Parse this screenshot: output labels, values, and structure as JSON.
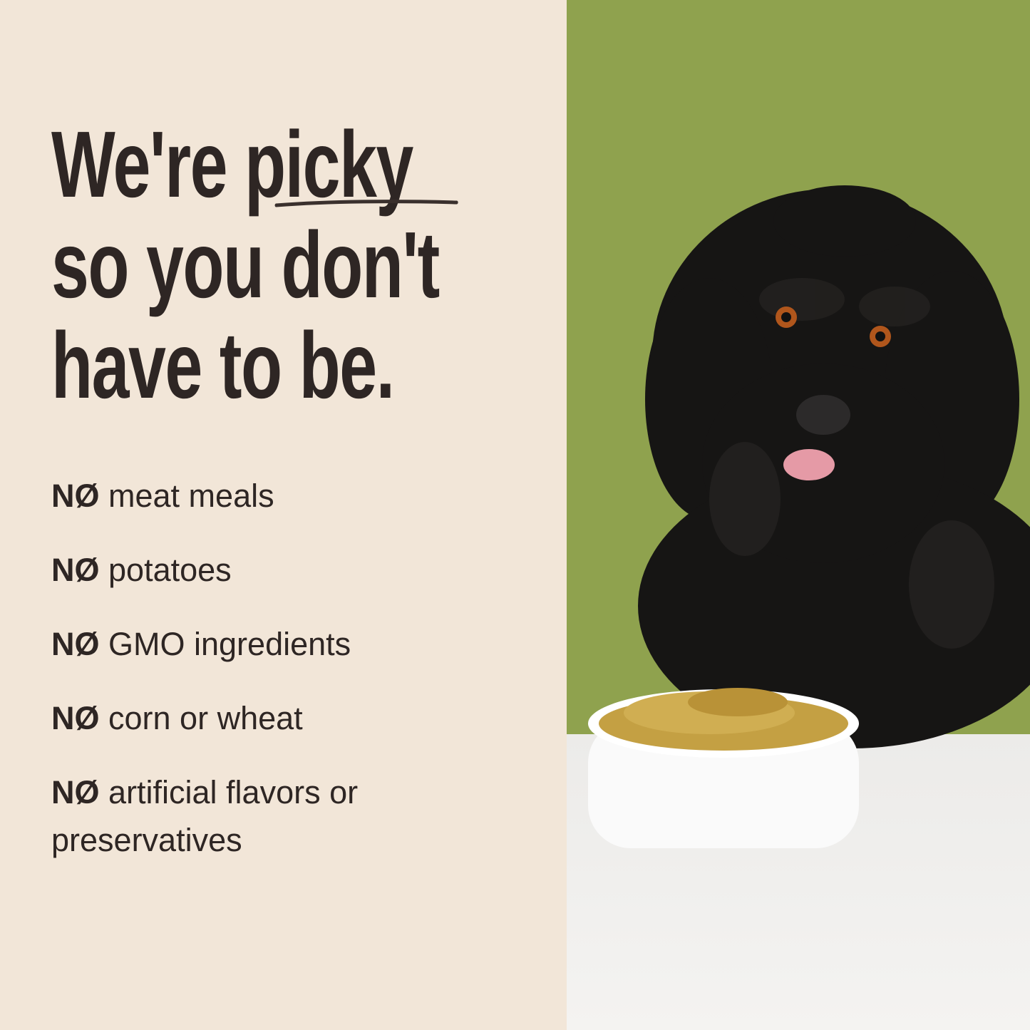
{
  "headline": {
    "line1_pre": "We're ",
    "line1_emph": "picky",
    "line2": "so you don't",
    "line3": "have to be."
  },
  "list": [
    {
      "prefix": "NØ",
      "text": "meat meals"
    },
    {
      "prefix": "NØ",
      "text": "potatoes"
    },
    {
      "prefix": "NØ",
      "text": "GMO ingredients"
    },
    {
      "prefix": "NØ",
      "text": "corn or wheat"
    },
    {
      "prefix": "NØ",
      "text": "artificial flavors or preservatives"
    }
  ],
  "colors": {
    "background": "#f2e6d8",
    "text": "#2e2624",
    "photo_backdrop": "#8fa24e"
  }
}
